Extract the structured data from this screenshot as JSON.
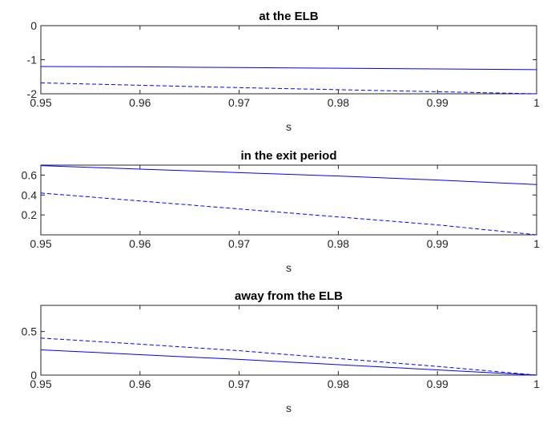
{
  "chart_data": [
    {
      "type": "line",
      "title": "at the ELB",
      "xlabel": "s",
      "ylabel": "",
      "xlim": [
        0.95,
        1
      ],
      "ylim": [
        -2,
        0
      ],
      "xticks": [
        0.95,
        0.96,
        0.97,
        0.98,
        0.99,
        1
      ],
      "xtick_labels": [
        "0.95",
        "0.96",
        "0.97",
        "0.98",
        "0.99",
        "1"
      ],
      "yticks": [
        -2,
        -1,
        0
      ],
      "ytick_labels": [
        "-2",
        "-1",
        "0"
      ],
      "grid": false,
      "series": [
        {
          "style": "solid",
          "color": "#0000ff",
          "x": [
            0.95,
            0.96,
            0.97,
            0.98,
            0.99,
            1
          ],
          "y": [
            -1.2,
            -1.21,
            -1.23,
            -1.25,
            -1.27,
            -1.29
          ]
        },
        {
          "style": "dashed",
          "color": "#0000ff",
          "x": [
            0.95,
            0.96,
            0.97,
            0.98,
            0.99,
            1
          ],
          "y": [
            -1.68,
            -1.75,
            -1.82,
            -1.88,
            -1.94,
            -2.0
          ]
        }
      ]
    },
    {
      "type": "line",
      "title": "in the exit period",
      "xlabel": "s",
      "ylabel": "",
      "xlim": [
        0.95,
        1
      ],
      "ylim": [
        0,
        0.7
      ],
      "xticks": [
        0.95,
        0.96,
        0.97,
        0.98,
        0.99,
        1
      ],
      "xtick_labels": [
        "0.95",
        "0.96",
        "0.97",
        "0.98",
        "0.99",
        "1"
      ],
      "yticks": [
        0.2,
        0.4,
        0.6
      ],
      "ytick_labels": [
        "0.2",
        "0.4",
        "0.6"
      ],
      "grid": false,
      "series": [
        {
          "style": "solid",
          "color": "#0000ff",
          "x": [
            0.95,
            0.96,
            0.97,
            0.98,
            0.99,
            1
          ],
          "y": [
            0.695,
            0.66,
            0.625,
            0.59,
            0.55,
            0.505
          ]
        },
        {
          "style": "dashed",
          "color": "#0000ff",
          "x": [
            0.95,
            0.96,
            0.97,
            0.98,
            0.99,
            1
          ],
          "y": [
            0.42,
            0.34,
            0.26,
            0.18,
            0.1,
            0.0
          ]
        }
      ]
    },
    {
      "type": "line",
      "title": "away from the ELB",
      "xlabel": "s",
      "ylabel": "",
      "xlim": [
        0.95,
        1
      ],
      "ylim": [
        0,
        0.8
      ],
      "xticks": [
        0.95,
        0.96,
        0.97,
        0.98,
        0.99,
        1
      ],
      "xtick_labels": [
        "0.95",
        "0.96",
        "0.97",
        "0.98",
        "0.99",
        "1"
      ],
      "yticks": [
        0,
        0.5
      ],
      "ytick_labels": [
        "0",
        "0.5"
      ],
      "grid": false,
      "series": [
        {
          "style": "solid",
          "color": "#0000ff",
          "x": [
            0.95,
            0.96,
            0.97,
            0.98,
            0.99,
            1
          ],
          "y": [
            0.29,
            0.235,
            0.18,
            0.12,
            0.06,
            0.0
          ]
        },
        {
          "style": "dashed",
          "color": "#0000ff",
          "x": [
            0.95,
            0.96,
            0.97,
            0.98,
            0.99,
            1
          ],
          "y": [
            0.425,
            0.355,
            0.28,
            0.19,
            0.1,
            0.0
          ]
        }
      ]
    }
  ]
}
